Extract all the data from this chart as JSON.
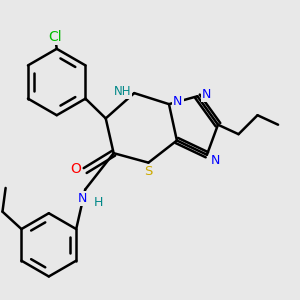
{
  "background_color": "#e8e8e8",
  "atom_colors": {
    "C": "#000000",
    "N": "#0000ff",
    "O": "#ff0000",
    "S": "#ccaa00",
    "Cl": "#00bb00",
    "H": "#008888"
  },
  "bond_color": "#000000",
  "bond_width": 1.8
}
